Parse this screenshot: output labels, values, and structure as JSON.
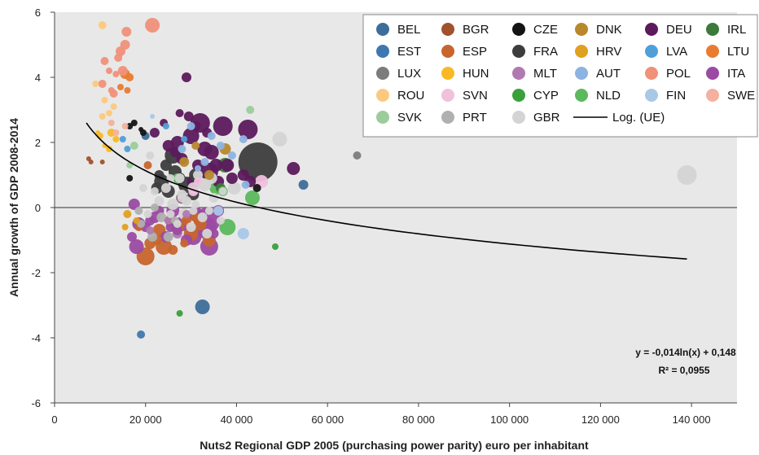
{
  "chart_data": {
    "type": "scatter",
    "title": "",
    "xlabel": "Nuts2 Regional GDP 2005 (purchasing power parity) euro per inhabitant",
    "ylabel": "Annual growth of GDP 2008-2014",
    "xlim": [
      0,
      150000
    ],
    "ylim": [
      -6,
      6
    ],
    "xticks": [
      0,
      20000,
      40000,
      60000,
      80000,
      100000,
      120000,
      140000
    ],
    "xtick_labels": [
      "0",
      "20 000",
      "40 000",
      "60 000",
      "80 000",
      "100 000",
      "120 000",
      "140 000"
    ],
    "yticks": [
      -6,
      -4,
      -2,
      0,
      2,
      4,
      6
    ],
    "ytick_labels": [
      "-6",
      "-4",
      "-2",
      "0",
      "2",
      "4",
      "6"
    ],
    "grid": true,
    "background": "#e8e8e8",
    "legend_position": "top-right",
    "bubble_size": "marker area varies by region",
    "series": [
      {
        "name": "BEL",
        "color": "#3d6e99",
        "points": [
          [
            20000,
            2.2,
            5
          ],
          [
            32500,
            -3.05,
            9
          ],
          [
            54700,
            0.7,
            6
          ]
        ]
      },
      {
        "name": "BGR",
        "color": "#a0522d",
        "points": [
          [
            7500,
            1.5,
            3
          ],
          [
            8000,
            1.4,
            3
          ],
          [
            10500,
            1.4,
            3
          ]
        ]
      },
      {
        "name": "CZE",
        "color": "#141414",
        "points": [
          [
            16500,
            2.5,
            4
          ],
          [
            17500,
            2.6,
            4
          ],
          [
            19500,
            2.3,
            4
          ],
          [
            16500,
            0.9,
            4
          ],
          [
            44500,
            0.6,
            5
          ],
          [
            19000,
            2.4,
            3
          ]
        ]
      },
      {
        "name": "DNK",
        "color": "#b8882c",
        "points": [
          [
            37500,
            1.8,
            7
          ],
          [
            28500,
            1.4,
            6
          ],
          [
            34000,
            1.0,
            6
          ],
          [
            31000,
            1.9,
            5
          ]
        ]
      },
      {
        "name": "DEU",
        "color": "#5c1a5c",
        "points": [
          [
            29000,
            4.0,
            6
          ],
          [
            32000,
            2.6,
            12
          ],
          [
            37000,
            2.5,
            12
          ],
          [
            42500,
            2.4,
            12
          ],
          [
            30000,
            2.2,
            10
          ],
          [
            33000,
            1.8,
            9
          ],
          [
            34500,
            1.7,
            9
          ],
          [
            27000,
            2.0,
            8
          ],
          [
            34000,
            1.1,
            11
          ],
          [
            35500,
            1.3,
            8
          ],
          [
            52500,
            1.2,
            8
          ],
          [
            30500,
            0.8,
            8
          ],
          [
            38000,
            1.3,
            8
          ],
          [
            22000,
            2.3,
            6
          ],
          [
            25000,
            1.9,
            7
          ],
          [
            28000,
            1.5,
            7
          ],
          [
            31500,
            1.3,
            7
          ],
          [
            36000,
            0.8,
            7
          ],
          [
            39000,
            0.9,
            7
          ],
          [
            41500,
            1.0,
            7
          ],
          [
            43000,
            0.8,
            7
          ],
          [
            29500,
            2.8,
            6
          ],
          [
            27500,
            2.9,
            5
          ],
          [
            31000,
            2.5,
            6
          ],
          [
            24000,
            2.6,
            5
          ],
          [
            33500,
            2.3,
            6
          ],
          [
            26500,
            1.7,
            6
          ]
        ]
      },
      {
        "name": "IRL",
        "color": "#3b7a3b",
        "points": [
          [
            37500,
            1.3,
            9
          ],
          [
            36500,
            0.6,
            6
          ]
        ]
      },
      {
        "name": "EST",
        "color": "#3f78b0",
        "points": [
          [
            19000,
            -3.9,
            5
          ]
        ]
      },
      {
        "name": "ESP",
        "color": "#c7652d",
        "points": [
          [
            20000,
            -1.5,
            11
          ],
          [
            24000,
            -1.2,
            10
          ],
          [
            23000,
            -0.7,
            8
          ],
          [
            27000,
            -0.6,
            8
          ],
          [
            30000,
            -0.8,
            9
          ],
          [
            21000,
            -1.1,
            7
          ],
          [
            25500,
            -0.4,
            7
          ],
          [
            32000,
            -0.5,
            8
          ],
          [
            22500,
            -1.0,
            6
          ],
          [
            29000,
            -0.4,
            6
          ],
          [
            20500,
            1.3,
            5
          ],
          [
            26000,
            -1.3,
            6
          ],
          [
            31000,
            -0.3,
            6
          ],
          [
            34000,
            -1.0,
            8
          ],
          [
            18500,
            -0.6,
            5
          ],
          [
            28500,
            -1.1,
            5
          ]
        ]
      },
      {
        "name": "FRA",
        "color": "#3d3d3d",
        "points": [
          [
            44700,
            1.4,
            24
          ],
          [
            26000,
            1.6,
            10
          ],
          [
            23500,
            0.8,
            9
          ],
          [
            26500,
            1.1,
            8
          ],
          [
            29000,
            0.7,
            10
          ],
          [
            25000,
            0.5,
            8
          ],
          [
            28000,
            0.3,
            7
          ],
          [
            31000,
            1.0,
            8
          ],
          [
            22500,
            0.6,
            7
          ],
          [
            24500,
            1.3,
            7
          ],
          [
            27500,
            0.9,
            7
          ],
          [
            23000,
            1.0,
            6
          ],
          [
            30500,
            0.4,
            7
          ]
        ]
      },
      {
        "name": "HRV",
        "color": "#e0a020",
        "points": [
          [
            16000,
            -0.2,
            5
          ],
          [
            18000,
            -0.4,
            4
          ],
          [
            15500,
            -0.6,
            4
          ]
        ]
      },
      {
        "name": "LVA",
        "color": "#4f9fd8",
        "points": [
          [
            15000,
            2.1,
            4
          ],
          [
            16000,
            1.8,
            4
          ],
          [
            24500,
            2.5,
            4
          ],
          [
            28500,
            2.1,
            4
          ]
        ]
      },
      {
        "name": "LTU",
        "color": "#e87c30",
        "points": [
          [
            15500,
            4.1,
            6
          ],
          [
            16500,
            4.0,
            5
          ],
          [
            14500,
            3.7,
            4
          ],
          [
            16000,
            3.6,
            4
          ]
        ]
      },
      {
        "name": "LUX",
        "color": "#7c7c7c",
        "points": [
          [
            66500,
            1.6,
            5
          ]
        ]
      },
      {
        "name": "HUN",
        "color": "#f9b924",
        "points": [
          [
            12500,
            2.3,
            5
          ],
          [
            13500,
            2.1,
            4
          ],
          [
            10000,
            2.2,
            4
          ],
          [
            12000,
            1.8,
            4
          ],
          [
            11000,
            1.9,
            3
          ],
          [
            9500,
            2.3,
            3
          ]
        ]
      },
      {
        "name": "MLT",
        "color": "#b07ab0",
        "points": [
          [
            21000,
            -0.7,
            5
          ],
          [
            27000,
            -0.8,
            6
          ],
          [
            25000,
            -0.4,
            5
          ],
          [
            29000,
            -0.2,
            5
          ]
        ]
      },
      {
        "name": "AUT",
        "color": "#8db3e0",
        "points": [
          [
            30000,
            2.5,
            5
          ],
          [
            34500,
            2.2,
            5
          ],
          [
            41500,
            2.1,
            5
          ],
          [
            39000,
            1.6,
            5
          ],
          [
            42000,
            0.7,
            5
          ],
          [
            28000,
            1.8,
            5
          ],
          [
            33000,
            1.4,
            5
          ],
          [
            36500,
            1.9,
            5
          ],
          [
            31500,
            1.2,
            4
          ]
        ]
      },
      {
        "name": "POL",
        "color": "#f0917a",
        "points": [
          [
            10500,
            3.8,
            5
          ],
          [
            14500,
            4.8,
            6
          ],
          [
            15000,
            4.2,
            6
          ],
          [
            15500,
            5.0,
            6
          ],
          [
            15800,
            5.4,
            6
          ],
          [
            21500,
            5.6,
            9
          ],
          [
            11000,
            4.5,
            5
          ],
          [
            13000,
            3.5,
            5
          ],
          [
            12000,
            4.2,
            4
          ],
          [
            14000,
            4.6,
            5
          ],
          [
            12500,
            3.6,
            4
          ],
          [
            13500,
            4.1,
            4
          ]
        ]
      },
      {
        "name": "ITA",
        "color": "#9b4ba3",
        "points": [
          [
            33500,
            -0.4,
            16
          ],
          [
            33000,
            -0.6,
            14
          ],
          [
            34000,
            -1.2,
            11
          ],
          [
            30500,
            -0.9,
            10
          ],
          [
            18000,
            -1.2,
            9
          ],
          [
            18500,
            -0.5,
            8
          ],
          [
            17500,
            0.1,
            7
          ],
          [
            26000,
            -0.1,
            8
          ],
          [
            28000,
            -0.5,
            9
          ],
          [
            31000,
            -0.2,
            9
          ],
          [
            24500,
            -0.9,
            7
          ],
          [
            22000,
            -0.3,
            7
          ],
          [
            29000,
            -1.0,
            7
          ],
          [
            36000,
            -0.1,
            7
          ],
          [
            20000,
            -0.6,
            6
          ],
          [
            27000,
            -0.7,
            6
          ],
          [
            35000,
            -0.8,
            6
          ],
          [
            23000,
            -0.1,
            6
          ],
          [
            17000,
            -0.9,
            6
          ],
          [
            21000,
            -0.4,
            6
          ],
          [
            25500,
            -0.6,
            6
          ]
        ]
      },
      {
        "name": "ROU",
        "color": "#fcc97f",
        "points": [
          [
            10500,
            5.6,
            5
          ],
          [
            11000,
            3.3,
            4
          ],
          [
            9000,
            3.8,
            4
          ],
          [
            12000,
            2.9,
            4
          ],
          [
            13000,
            3.1,
            4
          ],
          [
            10500,
            2.8,
            4
          ]
        ]
      },
      {
        "name": "SVN",
        "color": "#f0c0de",
        "points": [
          [
            45500,
            0.8,
            8
          ],
          [
            28000,
            0.3,
            6
          ],
          [
            30500,
            0.5,
            6
          ],
          [
            31500,
            0.8,
            5
          ]
        ]
      },
      {
        "name": "CYP",
        "color": "#3aa03a",
        "points": [
          [
            48500,
            -1.2,
            4
          ],
          [
            27500,
            -3.25,
            4
          ]
        ]
      },
      {
        "name": "NLD",
        "color": "#5cb85c",
        "points": [
          [
            38000,
            -0.6,
            10
          ],
          [
            43500,
            0.3,
            9
          ],
          [
            35500,
            0.6,
            8
          ],
          [
            37000,
            0.5,
            6
          ],
          [
            27000,
            0.9,
            6
          ]
        ]
      },
      {
        "name": "FIN",
        "color": "#a9c8e8",
        "points": [
          [
            41500,
            -0.8,
            7
          ],
          [
            36000,
            -0.1,
            6
          ],
          [
            21500,
            2.8,
            3
          ]
        ]
      },
      {
        "name": "SWE",
        "color": "#f5b0a0",
        "points": [
          [
            15500,
            2.5,
            4
          ],
          [
            13500,
            2.3,
            4
          ],
          [
            12500,
            2.6,
            4
          ]
        ]
      },
      {
        "name": "SVK",
        "color": "#9ccc9c",
        "points": [
          [
            43000,
            3.0,
            5
          ],
          [
            17500,
            1.9,
            5
          ],
          [
            16500,
            1.3,
            4
          ]
        ]
      },
      {
        "name": "PRT",
        "color": "#b0b0b0",
        "points": [
          [
            23500,
            -0.3,
            6
          ],
          [
            21500,
            -0.9,
            6
          ],
          [
            19000,
            -0.5,
            5
          ],
          [
            25000,
            -0.9,
            6
          ],
          [
            22000,
            0.0,
            5
          ],
          [
            18500,
            -0.1,
            5
          ],
          [
            26500,
            -0.4,
            5
          ]
        ]
      },
      {
        "name": "GBR",
        "color": "#d4d4d4",
        "points": [
          [
            139000,
            1.0,
            12
          ],
          [
            49500,
            2.1,
            9
          ],
          [
            39500,
            0.6,
            8
          ],
          [
            33000,
            0.7,
            8
          ],
          [
            30500,
            0.6,
            7
          ],
          [
            28500,
            -0.2,
            7
          ],
          [
            34500,
            0.9,
            7
          ],
          [
            26000,
            0.1,
            7
          ],
          [
            35000,
            0.3,
            6
          ],
          [
            31500,
            1.0,
            6
          ],
          [
            28000,
            0.4,
            6
          ],
          [
            24500,
            0.6,
            6
          ],
          [
            32500,
            -0.3,
            6
          ],
          [
            30000,
            -0.6,
            6
          ],
          [
            27500,
            0.9,
            6
          ],
          [
            23000,
            0.2,
            6
          ],
          [
            29000,
            0.2,
            6
          ],
          [
            37000,
            0.5,
            5
          ],
          [
            25500,
            -0.2,
            5
          ],
          [
            31000,
            0.1,
            5
          ],
          [
            33500,
            -0.8,
            6
          ],
          [
            36500,
            -0.4,
            5
          ],
          [
            22000,
            0.5,
            5
          ],
          [
            27000,
            -0.5,
            5
          ],
          [
            30500,
            -0.1,
            5
          ],
          [
            21000,
            1.6,
            5
          ],
          [
            19500,
            0.6,
            5
          ],
          [
            25500,
            0.9,
            5
          ],
          [
            20500,
            -0.2,
            5
          ],
          [
            34000,
            -0.1,
            5
          ]
        ]
      }
    ],
    "trendline": {
      "name": "Log. (UE)",
      "type": "logarithmic",
      "x_range": [
        7000,
        139000
      ],
      "color": "#000000",
      "equation": "y =  -0,014ln(x) + 0,148",
      "r_squared": "R² = 0,0955"
    }
  }
}
